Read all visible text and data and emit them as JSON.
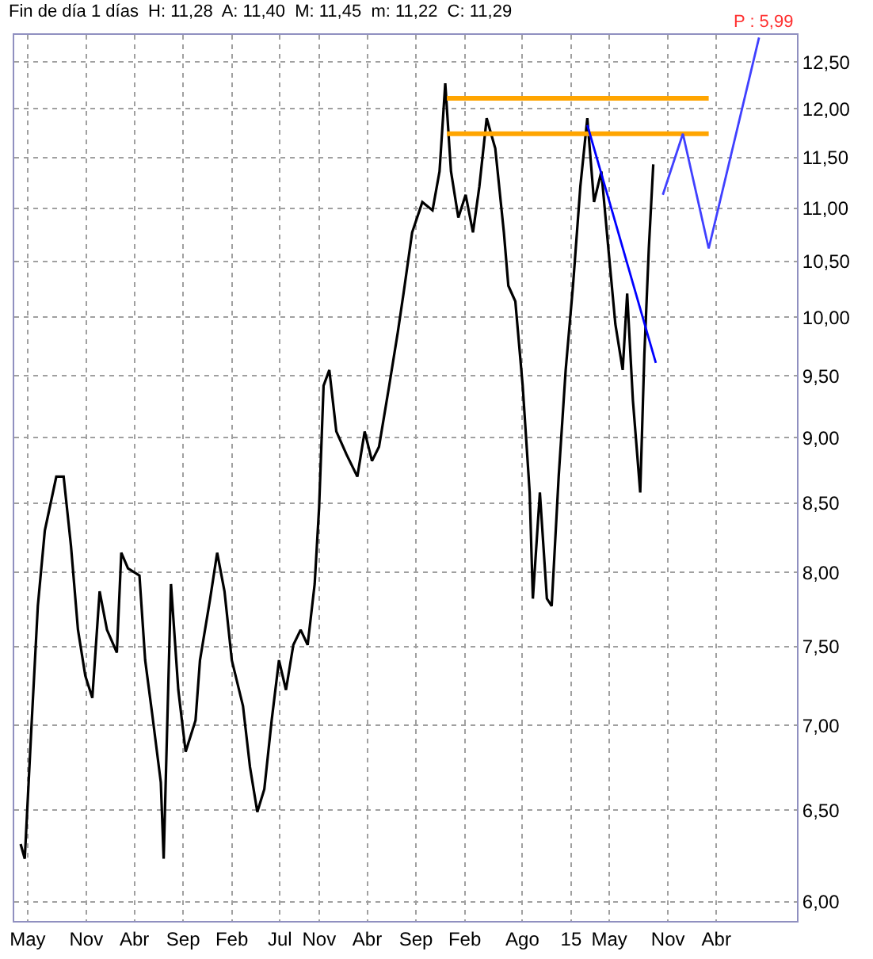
{
  "chart_data": {
    "type": "line",
    "title": "Fin de día 1 días  H: 11,28  A: 11,40  M: 11,45  m: 11,22  C: 11,29",
    "annotations": [
      "P : 5,99"
    ],
    "series": [
      {
        "color": "#000000",
        "x": [
          "2010-04-09",
          "2010-04-22",
          "2010-05-14",
          "2010-06-02",
          "2010-06-24",
          "2010-07-30",
          "2010-08-22",
          "2010-09-14",
          "2010-10-06",
          "2010-10-29",
          "2010-11-20",
          "2010-12-13",
          "2011-01-05",
          "2011-02-05",
          "2011-02-19",
          "2011-03-12",
          "2011-04-17",
          "2011-05-05",
          "2011-05-27",
          "2011-06-23",
          "2011-07-02",
          "2011-07-25",
          "2011-08-17",
          "2011-09-09",
          "2011-10-10",
          "2011-10-24",
          "2011-11-25",
          "2011-12-17",
          "2012-01-09",
          "2012-02-01",
          "2012-03-07",
          "2012-03-29",
          "2012-04-21",
          "2012-05-13",
          "2012-06-05",
          "2012-06-28",
          "2012-07-20",
          "2012-08-12",
          "2012-09-04",
          "2012-09-26",
          "2012-10-18",
          "2012-11-01",
          "2012-11-15",
          "2012-12-03",
          "2012-12-25",
          "2013-01-26",
          "2013-03-01",
          "2013-03-24",
          "2013-04-16",
          "2013-05-08",
          "2013-06-09",
          "2013-07-06",
          "2013-07-24",
          "2013-08-20",
          "2013-09-21",
          "2013-10-23",
          "2013-11-14",
          "2013-12-02",
          "2013-12-20",
          "2014-01-12",
          "2014-02-04",
          "2014-02-27",
          "2014-03-19",
          "2014-04-11",
          "2014-05-08",
          "2014-06-04",
          "2014-06-18",
          "2014-07-10",
          "2014-08-02",
          "2014-08-24",
          "2014-09-03",
          "2014-09-25",
          "2014-10-17",
          "2014-11-01",
          "2014-11-23",
          "2014-12-15",
          "2015-01-07",
          "2015-01-30",
          "2015-02-21",
          "2015-03-14",
          "2015-04-06",
          "2015-04-28",
          "2015-05-20",
          "2015-06-12",
          "2015-06-26",
          "2015-07-14",
          "2015-08-06",
          "2015-08-19",
          "2015-09-02",
          "2015-09-16"
        ],
        "values": [
          6.31,
          6.23,
          7.03,
          7.77,
          8.3,
          8.7,
          8.7,
          8.19,
          7.61,
          7.31,
          7.17,
          7.87,
          7.61,
          7.46,
          8.14,
          8.03,
          7.98,
          7.41,
          7.07,
          6.66,
          6.23,
          7.92,
          7.22,
          6.84,
          7.03,
          7.41,
          7.82,
          8.14,
          7.87,
          7.41,
          7.12,
          6.75,
          6.49,
          6.62,
          7.03,
          7.41,
          7.22,
          7.51,
          7.61,
          7.51,
          7.92,
          8.47,
          9.42,
          9.55,
          9.05,
          8.87,
          8.7,
          9.05,
          8.82,
          8.93,
          9.42,
          9.87,
          10.21,
          10.77,
          11.06,
          10.98,
          11.36,
          12.27,
          11.36,
          10.91,
          11.13,
          10.77,
          11.21,
          11.9,
          11.59,
          10.77,
          10.28,
          10.14,
          9.42,
          8.58,
          7.82,
          8.58,
          7.82,
          7.77,
          8.7,
          9.55,
          10.28,
          11.21,
          11.9,
          11.06,
          11.36,
          10.62,
          9.94,
          9.55,
          10.21,
          9.3,
          8.58,
          9.68,
          10.62,
          11.43
        ]
      },
      {
        "color": "#ffa500",
        "x": [
          "2013-12-07",
          "2016-03-08"
        ],
        "values": [
          12.11,
          12.11
        ]
      },
      {
        "color": "#ffa500",
        "x": [
          "2013-12-07",
          "2016-03-08"
        ],
        "values": [
          11.74,
          11.74
        ]
      },
      {
        "color": "#0000ff",
        "x": [
          "2015-02-21",
          "2015-09-24"
        ],
        "values": [
          11.83,
          9.61
        ]
      },
      {
        "color": "#4040ff",
        "x": [
          "2015-10-16",
          "2015-12-18",
          "2016-03-08",
          "2016-08-13"
        ],
        "values": [
          11.13,
          11.74,
          10.62,
          12.77
        ]
      }
    ],
    "xlim": [
      "2010-03-20",
      "2016-12-10"
    ],
    "xticks": [
      {
        "value": "2010-05-01",
        "label": "May"
      },
      {
        "value": "2010-11-01",
        "label": "Nov"
      },
      {
        "value": "2011-04-01",
        "label": "Abr"
      },
      {
        "value": "2011-09-01",
        "label": "Sep"
      },
      {
        "value": "2012-02-01",
        "label": "Feb"
      },
      {
        "value": "2012-07-01",
        "label": "Jul"
      },
      {
        "value": "2012-11-01",
        "label": "Nov"
      },
      {
        "value": "2013-04-01",
        "label": "Abr"
      },
      {
        "value": "2013-09-01",
        "label": "Sep"
      },
      {
        "value": "2014-02-01",
        "label": "Feb"
      },
      {
        "value": "2014-08-01",
        "label": "Ago"
      },
      {
        "value": "2015-01-01",
        "label": "15"
      },
      {
        "value": "2015-05-01",
        "label": "May"
      },
      {
        "value": "2015-11-01",
        "label": "Nov"
      },
      {
        "value": "2016-04-01",
        "label": "Abr"
      }
    ],
    "ylim": [
      5.9,
      12.8
    ],
    "yticks": [
      {
        "value": 6,
        "label": "6,00"
      },
      {
        "value": 6.5,
        "label": "6,50"
      },
      {
        "value": 7,
        "label": "7,00"
      },
      {
        "value": 7.5,
        "label": "7,50"
      },
      {
        "value": 8,
        "label": "8,00"
      },
      {
        "value": 8.5,
        "label": "8,50"
      },
      {
        "value": 9,
        "label": "9,00"
      },
      {
        "value": 9.5,
        "label": "9,50"
      },
      {
        "value": 10,
        "label": "10,00"
      },
      {
        "value": 10.5,
        "label": "10,50"
      },
      {
        "value": 11,
        "label": "11,00"
      },
      {
        "value": 11.5,
        "label": "11,50"
      },
      {
        "value": 12,
        "label": "12,00"
      },
      {
        "value": 12.5,
        "label": "12,50"
      }
    ],
    "log": "y",
    "grid": true,
    "marker": "none",
    "line_style": "solid"
  }
}
